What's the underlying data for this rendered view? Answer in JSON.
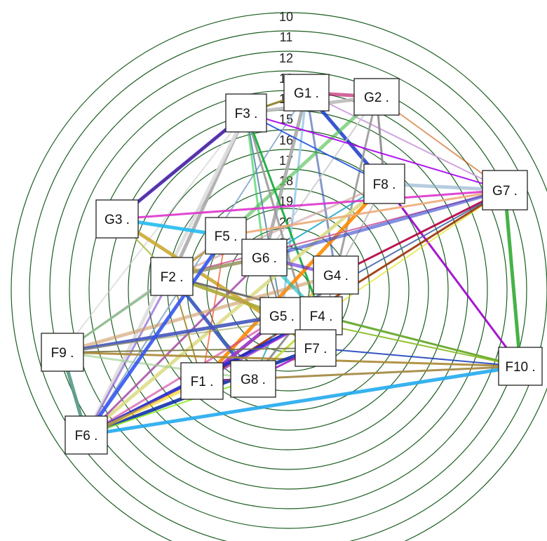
{
  "ring_labels": [
    "10",
    "11",
    "12",
    "13",
    "14",
    "15",
    "16",
    "17",
    "18",
    "19",
    "20",
    "21"
  ],
  "ring_color": "#1b5e20",
  "nodes": [
    {
      "id": "G1",
      "label": "G1 ."
    },
    {
      "id": "G2",
      "label": "G2 ."
    },
    {
      "id": "F3",
      "label": "F3 ."
    },
    {
      "id": "F8",
      "label": "F8 ."
    },
    {
      "id": "G7",
      "label": "G7 ."
    },
    {
      "id": "G3",
      "label": "G3 ."
    },
    {
      "id": "F5",
      "label": "F5 ."
    },
    {
      "id": "G6",
      "label": "G6 ."
    },
    {
      "id": "F2",
      "label": "F2 ."
    },
    {
      "id": "G4",
      "label": "G4 ."
    },
    {
      "id": "G5",
      "label": "G5 ."
    },
    {
      "id": "F4",
      "label": "F4 ."
    },
    {
      "id": "F9",
      "label": "F9 ."
    },
    {
      "id": "F7",
      "label": "F7 ."
    },
    {
      "id": "F10",
      "label": "F10 ."
    },
    {
      "id": "F1",
      "label": "F1 ."
    },
    {
      "id": "G8",
      "label": "G8 ."
    },
    {
      "id": "F6",
      "label": "F6 ."
    }
  ],
  "edges": [
    [
      "G1",
      "G2",
      "#b0005a"
    ],
    [
      "G1",
      "F3",
      "#8a7a20"
    ],
    [
      "G1",
      "G7",
      "#cc99dd"
    ],
    [
      "G1",
      "F8",
      "#2244cc"
    ],
    [
      "G1",
      "G4",
      "#3355aa"
    ],
    [
      "G1",
      "F6",
      "#88aacc"
    ],
    [
      "G1",
      "G6",
      "#aaaaaa"
    ],
    [
      "G1",
      "G5",
      "#99ccee"
    ],
    [
      "G2",
      "G7",
      "#cc5500"
    ],
    [
      "G2",
      "F3",
      "#bbbbbb"
    ],
    [
      "G2",
      "F8",
      "#888888"
    ],
    [
      "G2",
      "G6",
      "#cccccc"
    ],
    [
      "G2",
      "F5",
      "#44bb44"
    ],
    [
      "G2",
      "G4",
      "#999999"
    ],
    [
      "F3",
      "G7",
      "#aa00ee"
    ],
    [
      "F3",
      "G3",
      "#3333ff"
    ],
    [
      "F3",
      "G6",
      "#22cc44"
    ],
    [
      "F3",
      "F8",
      "#2255dd"
    ],
    [
      "F3",
      "F2",
      "#aaaaaa"
    ],
    [
      "F3",
      "F7",
      "#999999"
    ],
    [
      "F3",
      "F9",
      "#cccccc"
    ],
    [
      "F3",
      "F6",
      "#dddddd"
    ],
    [
      "F3",
      "F4",
      "#11aa33"
    ],
    [
      "F3",
      "G5",
      "#5588aa"
    ],
    [
      "F8",
      "G7",
      "#88aacc"
    ],
    [
      "F8",
      "F10",
      "#9900cc"
    ],
    [
      "F8",
      "G6",
      "#22aacc"
    ],
    [
      "F8",
      "F1",
      "#ff8800"
    ],
    [
      "F8",
      "F2",
      "#cc9999"
    ],
    [
      "F8",
      "G4",
      "#bbbbbb"
    ],
    [
      "F8",
      "F6",
      "#dddd88"
    ],
    [
      "G7",
      "G4",
      "#b00040"
    ],
    [
      "G7",
      "F4",
      "#dddd00"
    ],
    [
      "G7",
      "F10",
      "#33aa33"
    ],
    [
      "G7",
      "F5",
      "#eeaa77"
    ],
    [
      "G7",
      "F2",
      "#cc5599"
    ],
    [
      "G7",
      "G6",
      "#3344cc"
    ],
    [
      "G7",
      "F1",
      "#993300"
    ],
    [
      "G7",
      "G5",
      "#4466aa"
    ],
    [
      "G3",
      "F5",
      "#22bbee"
    ],
    [
      "G3",
      "F3",
      "#772233"
    ],
    [
      "G3",
      "F2",
      "#aabb44"
    ],
    [
      "G3",
      "F7",
      "#ccaa33"
    ],
    [
      "G3",
      "G7",
      "#dd33cc"
    ],
    [
      "F5",
      "F1",
      "#ee3300"
    ],
    [
      "F5",
      "G6",
      "#666666"
    ],
    [
      "F5",
      "F2",
      "#cc8800"
    ],
    [
      "F5",
      "F9",
      "#bbbbbb"
    ],
    [
      "G6",
      "G4",
      "#5522dd"
    ],
    [
      "G6",
      "F6",
      "#aa55aa"
    ],
    [
      "G6",
      "G5",
      "#777777"
    ],
    [
      "G6",
      "F2",
      "#999966"
    ],
    [
      "F2",
      "F6",
      "#7744cc"
    ],
    [
      "F2",
      "F1",
      "#998822"
    ],
    [
      "F2",
      "G8",
      "#3355bb"
    ],
    [
      "F2",
      "F9",
      "#88bb88"
    ],
    [
      "F2",
      "F10",
      "#8899aa"
    ],
    [
      "F2",
      "G5",
      "#aaaa33"
    ],
    [
      "F2",
      "F4",
      "#666666"
    ],
    [
      "G4",
      "F1",
      "#ffaa00"
    ],
    [
      "G4",
      "F9",
      "#cc9966"
    ],
    [
      "G4",
      "G8",
      "#888888"
    ],
    [
      "G4",
      "F7",
      "#bbbbbb"
    ],
    [
      "G5",
      "F9",
      "#4455bb"
    ],
    [
      "G5",
      "F6",
      "#cc3399"
    ],
    [
      "G5",
      "G8",
      "#33aacc"
    ],
    [
      "G5",
      "F1",
      "#9933cc"
    ],
    [
      "F4",
      "F10",
      "#66aa22"
    ],
    [
      "F4",
      "F9",
      "#999955"
    ],
    [
      "F4",
      "F6",
      "#2222cc"
    ],
    [
      "F4",
      "G8",
      "#bbdd33"
    ],
    [
      "F4",
      "F1",
      "#aa44dd"
    ],
    [
      "F4",
      "G6",
      "#11bbbb"
    ],
    [
      "F9",
      "F10",
      "#aa8833"
    ],
    [
      "F9",
      "F7",
      "#777744"
    ],
    [
      "F9",
      "F6",
      "#559988"
    ],
    [
      "F9",
      "G8",
      "#99cc88"
    ],
    [
      "F7",
      "F10",
      "#2244bb"
    ],
    [
      "F7",
      "F6",
      "#1133aa"
    ],
    [
      "F7",
      "G8",
      "#aa22cc"
    ],
    [
      "F10",
      "G8",
      "#33cc99"
    ],
    [
      "F10",
      "F6",
      "#22aaee"
    ],
    [
      "F10",
      "F1",
      "#aa8844"
    ],
    [
      "F10",
      "G5",
      "#88bb22"
    ],
    [
      "F1",
      "F6",
      "#ffcc00"
    ],
    [
      "F1",
      "G8",
      "#663399"
    ],
    [
      "G8",
      "F6",
      "#88ee22"
    ],
    [
      "F6",
      "F5",
      "#3355ee"
    ]
  ]
}
